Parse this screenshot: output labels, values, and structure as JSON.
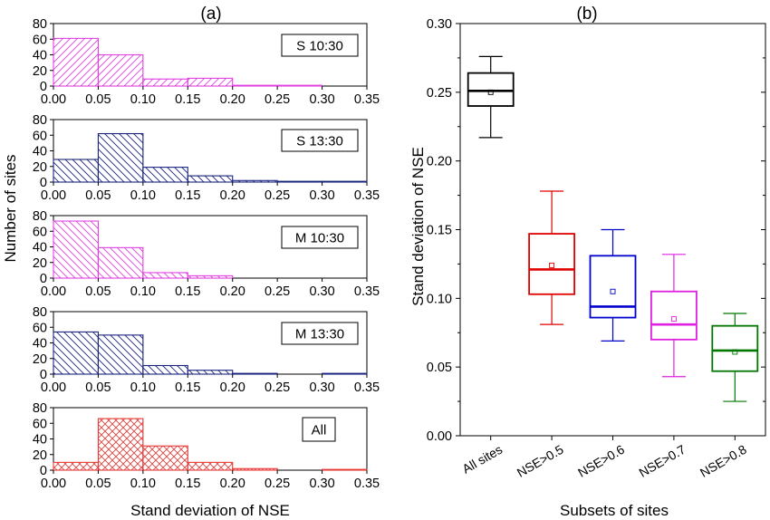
{
  "chart_data": [
    {
      "type": "histogram",
      "panel_label": "(a)",
      "xlabel": "Stand deviation of NSE",
      "ylabel": "Number of sites",
      "xlim": [
        0,
        0.35
      ],
      "ylim": [
        0,
        80
      ],
      "x_ticks": [
        "0.00",
        "0.05",
        "0.10",
        "0.15",
        "0.20",
        "0.25",
        "0.30",
        "0.35"
      ],
      "y_ticks": [
        "0",
        "20",
        "40",
        "60",
        "80"
      ],
      "bin_edges": [
        0,
        0.05,
        0.1,
        0.15,
        0.2,
        0.25,
        0.3,
        0.35
      ],
      "series": [
        {
          "name": "S 10:30",
          "color": "#e040e0",
          "hatch": "diag-up",
          "values": [
            61,
            40,
            9,
            10,
            1,
            1,
            0
          ]
        },
        {
          "name": "S 13:30",
          "color": "#1a237e",
          "hatch": "diag-down",
          "values": [
            29,
            62,
            19,
            8,
            2,
            1,
            1
          ]
        },
        {
          "name": "M 10:30",
          "color": "#e040e0",
          "hatch": "diag-down",
          "values": [
            73,
            39,
            7,
            3,
            0,
            0,
            0
          ]
        },
        {
          "name": "M 13:30",
          "color": "#1a237e",
          "hatch": "diag-down",
          "values": [
            54,
            50,
            11,
            5,
            1,
            0,
            1
          ]
        },
        {
          "name": "All",
          "color": "#e53935",
          "hatch": "cross",
          "values": [
            10,
            66,
            31,
            10,
            2,
            0,
            1
          ]
        }
      ]
    },
    {
      "type": "box",
      "panel_label": "(b)",
      "xlabel": "Subsets of sites",
      "ylabel": "Stand deviation of NSE",
      "ylim": [
        0,
        0.3
      ],
      "y_ticks": [
        "0.00",
        "0.05",
        "0.10",
        "0.15",
        "0.20",
        "0.25",
        "0.30"
      ],
      "categories": [
        "All sites",
        "NSE>0.5",
        "NSE>0.6",
        "NSE>0.7",
        "NSE>0.8"
      ],
      "boxes": [
        {
          "color": "#000000",
          "whisker_low": 0.217,
          "q1": 0.24,
          "median": 0.251,
          "q3": 0.264,
          "whisker_high": 0.276,
          "mean": 0.25
        },
        {
          "color": "#e00000",
          "whisker_low": 0.081,
          "q1": 0.103,
          "median": 0.121,
          "q3": 0.147,
          "whisker_high": 0.178,
          "mean": 0.124
        },
        {
          "color": "#0000cc",
          "whisker_low": 0.069,
          "q1": 0.086,
          "median": 0.094,
          "q3": 0.131,
          "whisker_high": 0.15,
          "mean": 0.105
        },
        {
          "color": "#e020e0",
          "whisker_low": 0.043,
          "q1": 0.07,
          "median": 0.081,
          "q3": 0.105,
          "whisker_high": 0.132,
          "mean": 0.085
        },
        {
          "color": "#007700",
          "whisker_low": 0.025,
          "q1": 0.047,
          "median": 0.062,
          "q3": 0.08,
          "whisker_high": 0.089,
          "mean": 0.061
        }
      ]
    }
  ]
}
